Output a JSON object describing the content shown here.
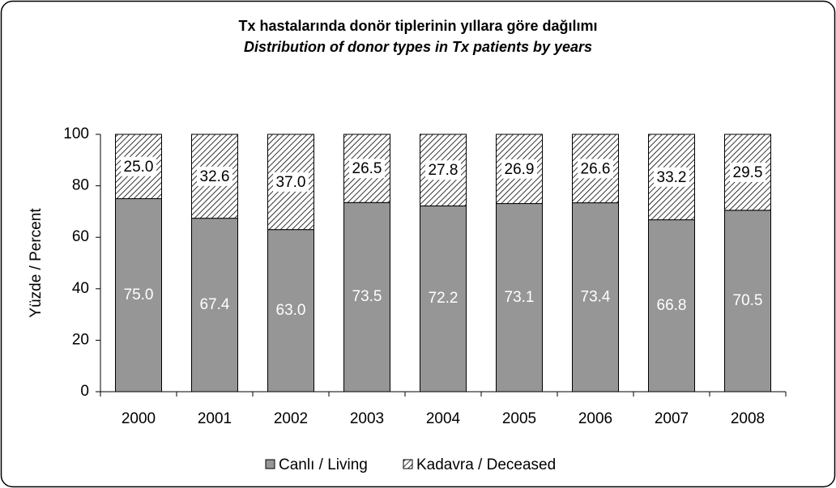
{
  "chart_data": {
    "type": "stacked_bar",
    "title": "Tx hastalarında donör tiplerinin yıllara göre dağılımı",
    "subtitle": "Distribution of donor types in Tx patients by years",
    "y_label": "Yüzde / Percent",
    "categories": [
      "2000",
      "2001",
      "2002",
      "2003",
      "2004",
      "2005",
      "2006",
      "2007",
      "2008"
    ],
    "series": [
      {
        "name": "Canlı / Living",
        "color": "#969696",
        "pattern": "solid",
        "values": [
          75,
          67.4,
          63,
          73.5,
          72.2,
          73.1,
          73.4,
          66.8,
          70.5
        ],
        "value_labels": [
          "75.0",
          "67.4",
          "63.0",
          "73.5",
          "72.2",
          "73.1",
          "73.4",
          "66.8",
          "70.5"
        ]
      },
      {
        "name": "Kadavra / Deceased",
        "color": "#ffffff",
        "pattern": "hatch",
        "values": [
          25,
          32.6,
          37,
          26.5,
          27.8,
          26.9,
          26.6,
          33.2,
          29.5
        ],
        "value_labels": [
          "25.0",
          "32.6",
          "37.0",
          "26.5",
          "27.8",
          "26.9",
          "26.6",
          "33.2",
          "29.5"
        ]
      }
    ],
    "ylim": [
      0,
      100
    ],
    "yticks": [
      0,
      20,
      40,
      60,
      80,
      100
    ],
    "legend": "bottom"
  }
}
